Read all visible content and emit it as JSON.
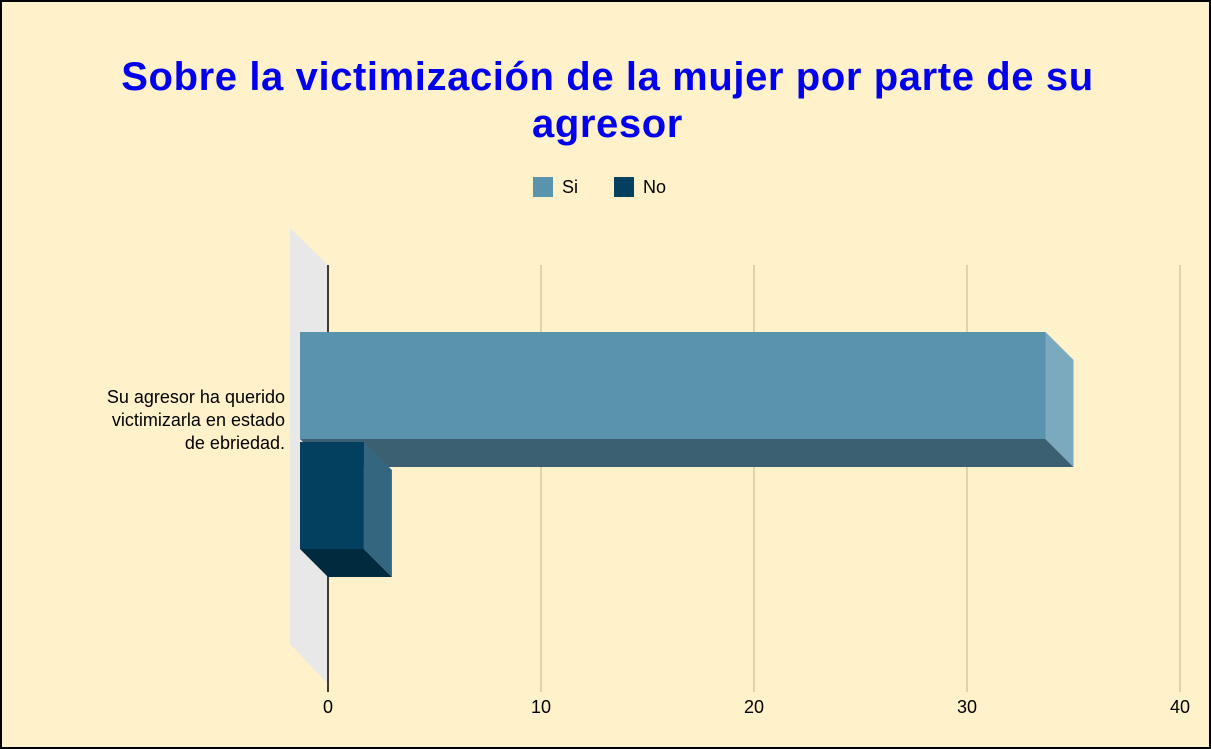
{
  "chart_data": {
    "type": "bar3d",
    "orientation": "horizontal",
    "title": "Sobre la victimización de la mujer por parte de su agresor",
    "categories": [
      "Su agresor ha querido victimizarla en estado de ebriedad."
    ],
    "series": [
      {
        "name": "Si",
        "color": "#5a93ae",
        "values": [
          35
        ]
      },
      {
        "name": "No",
        "color": "#034060",
        "values": [
          3
        ]
      }
    ],
    "xlim": [
      0,
      40
    ],
    "xticks": [
      0,
      10,
      20,
      30,
      40
    ],
    "grid": true,
    "legend": "top"
  }
}
